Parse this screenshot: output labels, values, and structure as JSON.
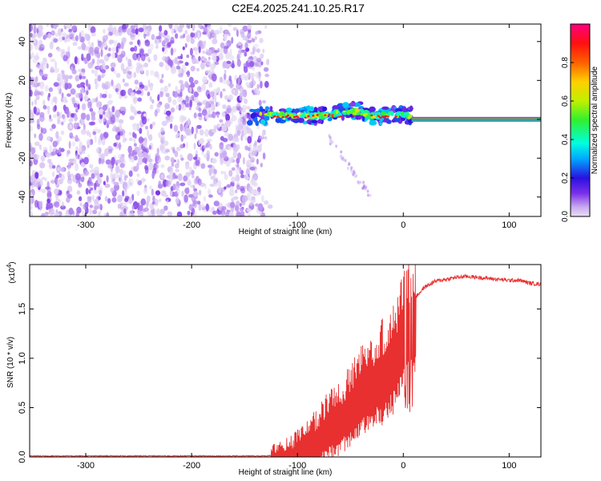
{
  "title": "C2E4.2025.241.10.25.R17",
  "chart_data": [
    {
      "type": "heatmap",
      "name": "spectrogram",
      "xlabel": "Height of straight line (km)",
      "ylabel": "Frequency (Hz)",
      "xlim": [
        -353,
        130
      ],
      "ylim": [
        -50,
        49
      ],
      "xticks": [
        "-300",
        "-200",
        "-100",
        "0",
        "100"
      ],
      "xtick_values": [
        -300,
        -200,
        -100,
        0,
        100
      ],
      "yticks": [
        "-40",
        "-20",
        "0",
        "20",
        "40"
      ],
      "ytick_values": [
        -40,
        -20,
        0,
        20,
        40
      ],
      "colorbar": {
        "label": "Normalized spectral amplitude",
        "range": [
          0,
          1
        ],
        "ticks": [
          "0.0",
          "0.2",
          "0.4",
          "0.6",
          "0.8"
        ],
        "tick_values": [
          0.0,
          0.2,
          0.4,
          0.6,
          0.8
        ]
      },
      "regions": [
        {
          "description": "noise",
          "x_range": [
            -353,
            -125
          ],
          "freq_range": [
            -50,
            49
          ],
          "amplitude": [
            0.0,
            0.12
          ]
        },
        {
          "description": "signal cluster",
          "x_range": [
            -145,
            8
          ],
          "freq_center": [
            2,
            2
          ],
          "freq_halfwidth": 4,
          "amplitude": [
            0.15,
            0.5
          ]
        },
        {
          "description": "carrier line",
          "x_range": [
            8,
            130
          ],
          "freq": 0,
          "amplitude": 0.98
        },
        {
          "description": "faint tail",
          "x_range": [
            -70,
            -30
          ],
          "freq_range": [
            -10,
            -40
          ],
          "amplitude": [
            0.02,
            0.08
          ]
        }
      ]
    },
    {
      "type": "line",
      "name": "snr",
      "xlabel": "Height of straight line (km)",
      "ylabel": "SNR (10 * v/v)",
      "multiplier": "(x10",
      "multiplier_exp": "4",
      "multiplier_close": ")",
      "xlim": [
        -353,
        130
      ],
      "ylim": [
        0,
        1.95
      ],
      "xticks": [
        "-300",
        "-200",
        "-100",
        "0",
        "100"
      ],
      "xtick_values": [
        -300,
        -200,
        -100,
        0,
        100
      ],
      "yticks": [
        "0.0",
        "0.5",
        "1.0",
        "1.5"
      ],
      "ytick_values": [
        0.0,
        0.5,
        1.0,
        1.5
      ],
      "color": "#e83030",
      "envelope": {
        "x": [
          -353,
          -200,
          -130,
          -115,
          -100,
          -90,
          -80,
          -70,
          -60,
          -50,
          -40,
          -30,
          -20,
          -10,
          0,
          5,
          10,
          20,
          30,
          40,
          50,
          60,
          70,
          80,
          90,
          100,
          110,
          120,
          130
        ],
        "y": [
          0.01,
          0.01,
          0.01,
          0.03,
          0.1,
          0.18,
          0.3,
          0.42,
          0.5,
          0.62,
          0.78,
          0.9,
          1.0,
          1.15,
          1.4,
          1.55,
          1.6,
          1.72,
          1.78,
          1.8,
          1.82,
          1.83,
          1.82,
          1.81,
          1.8,
          1.79,
          1.79,
          1.76,
          1.75
        ]
      }
    }
  ]
}
